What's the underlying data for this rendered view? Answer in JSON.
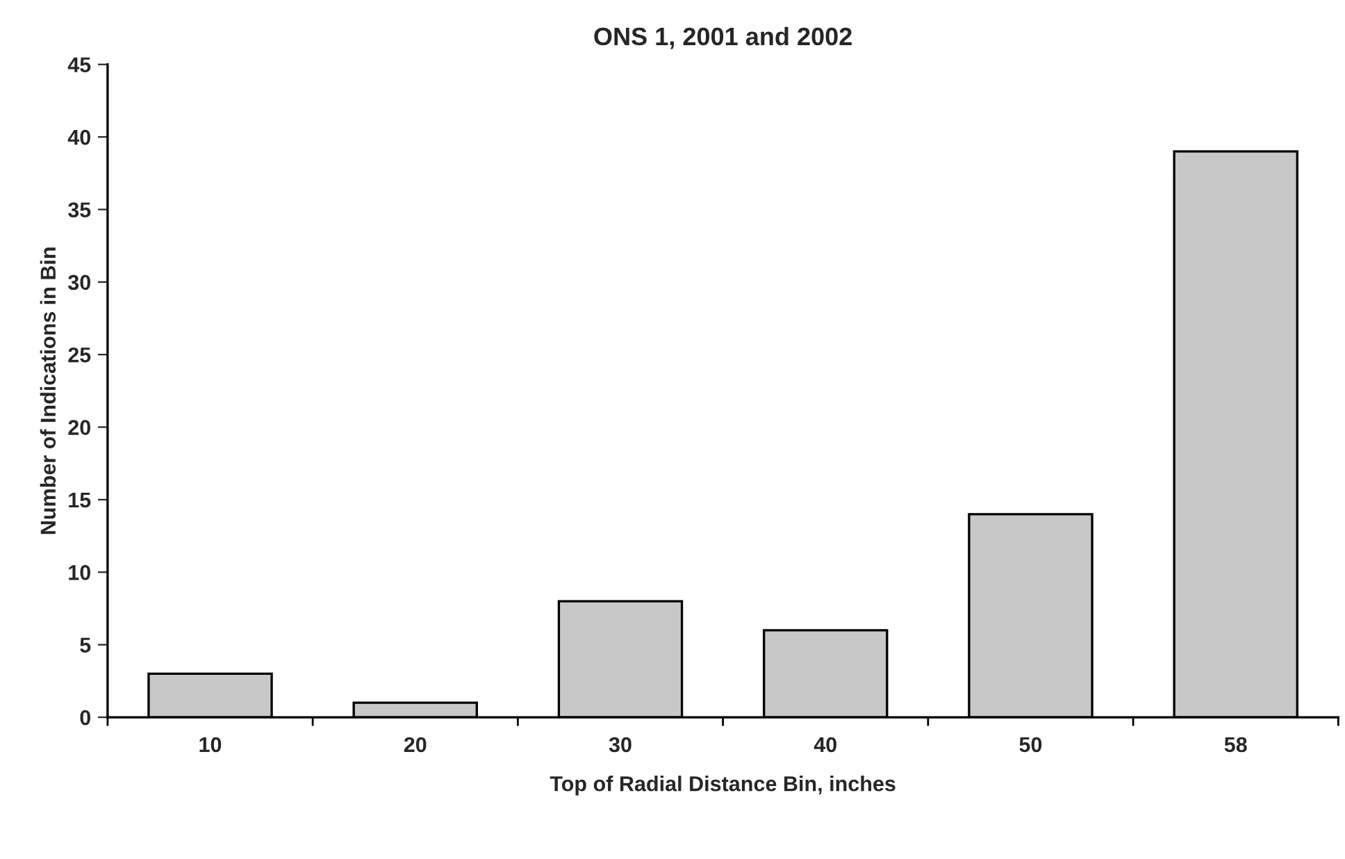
{
  "chart_data": {
    "type": "bar",
    "title": "ONS 1, 2001 and 2002",
    "xlabel": "Top of Radial Distance Bin, inches",
    "ylabel": "Number of Indications in Bin",
    "categories": [
      "10",
      "20",
      "30",
      "40",
      "50",
      "58"
    ],
    "values": [
      3,
      1,
      8,
      6,
      14,
      39
    ],
    "color": "#c8c8c8",
    "ylim": [
      0,
      45
    ],
    "yticks": [
      0,
      5,
      10,
      15,
      20,
      25,
      30,
      35,
      40,
      45
    ],
    "grid": false,
    "legend": false
  }
}
